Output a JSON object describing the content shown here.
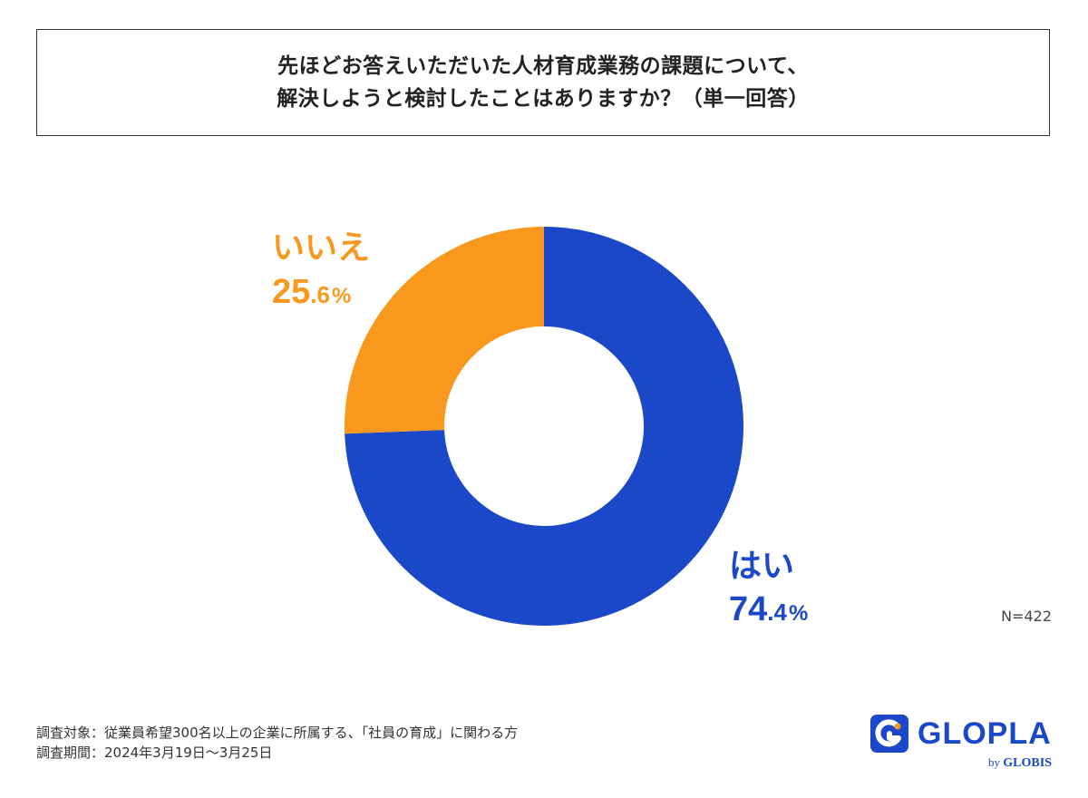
{
  "title": {
    "line1": "先ほどお答えいただいた人材育成業務の課題について、",
    "line2": "解決しようと検討したことはありますか？（単一回答）"
  },
  "chart_data": {
    "type": "pie",
    "donut": true,
    "slices": [
      {
        "label": "はい",
        "value": 74.4,
        "display_int": "74",
        "display_dec": ".4",
        "display_unit": "%",
        "color": "#1a48c8"
      },
      {
        "label": "いいえ",
        "value": 25.6,
        "display_int": "25",
        "display_dec": ".6",
        "display_unit": "%",
        "color": "#f8981d"
      }
    ],
    "n_label": "N=422"
  },
  "footnote": {
    "line1": "調査対象：従業員希望300名以上の企業に所属する、「社員の育成」に関わる方",
    "line2": "調査期間：2024年3月19日〜3月25日"
  },
  "logo": {
    "name": "GLOPLA",
    "by": "by",
    "org": "GLOBIS",
    "icon": "glopla-logo-icon",
    "color": "#1a48c8"
  }
}
